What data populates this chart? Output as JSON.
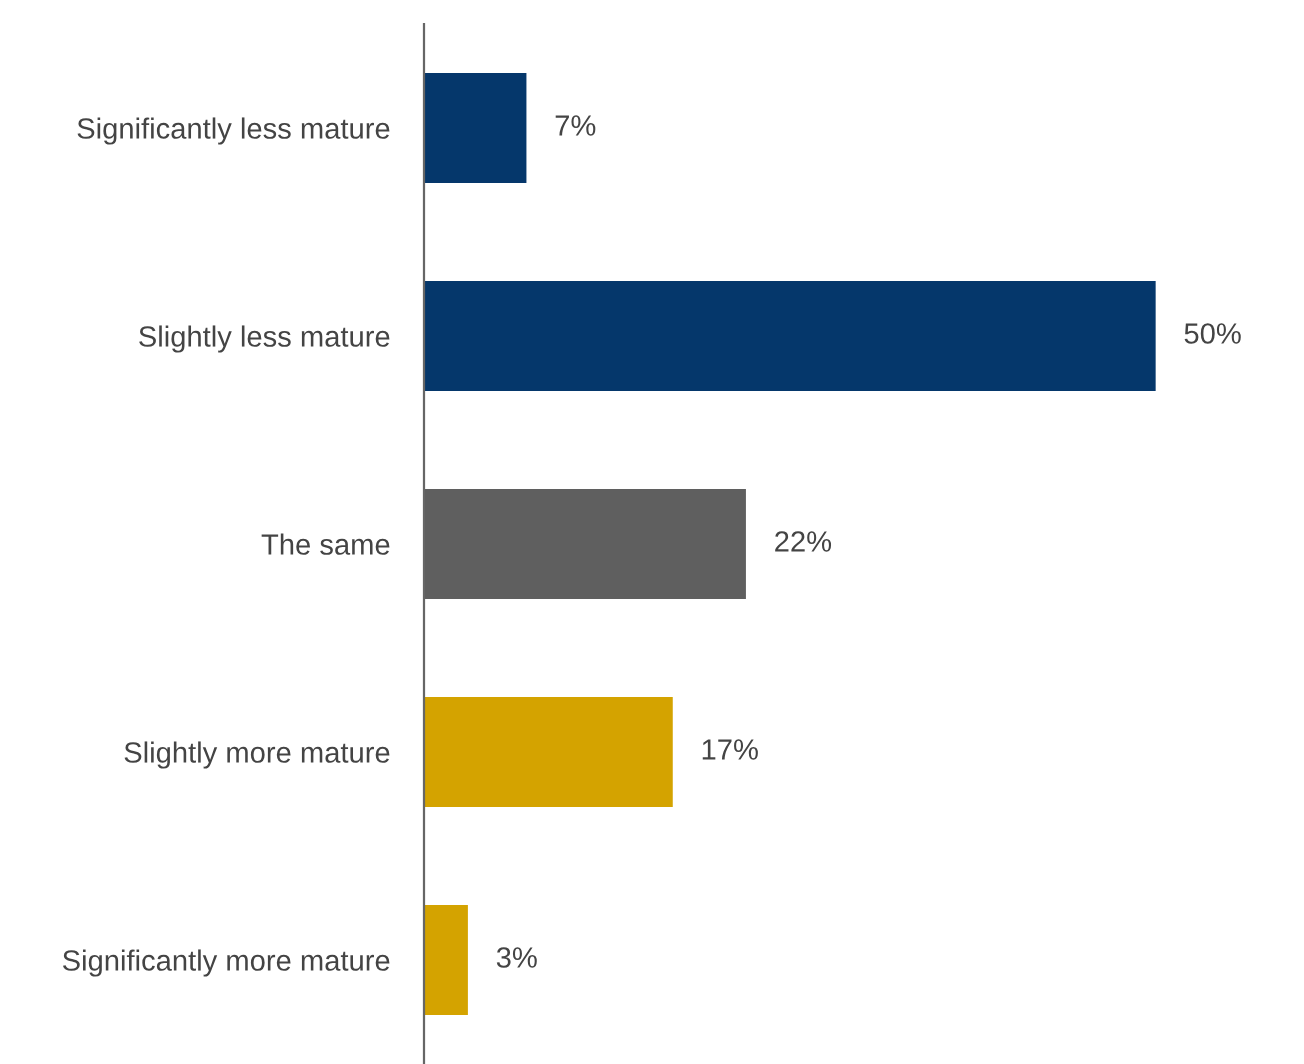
{
  "chart_data": {
    "type": "bar",
    "orientation": "horizontal",
    "categories": [
      "Significantly less mature",
      "Slightly less mature",
      "The same",
      "Slightly more mature",
      "Significantly more mature"
    ],
    "values": [
      7,
      50,
      22,
      17,
      3
    ],
    "colors": [
      "#05376b",
      "#05376b",
      "#5f5f5f",
      "#d4a300",
      "#d4a300"
    ],
    "value_labels": [
      "7%",
      "50%",
      "22%",
      "17%",
      "3%"
    ],
    "grid": false,
    "legend": false
  }
}
